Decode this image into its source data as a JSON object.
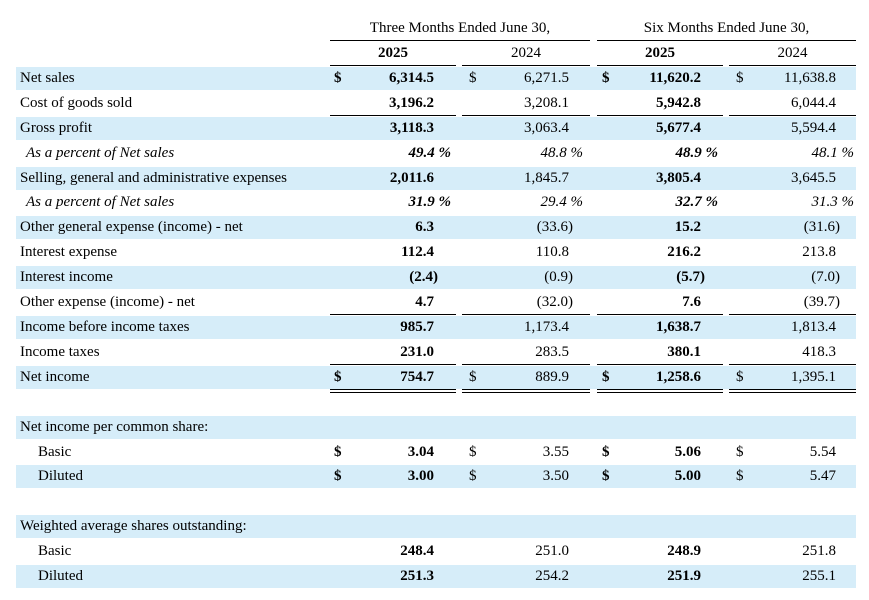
{
  "header": {
    "group1": "Three Months Ended June 30,",
    "group2": "Six Months Ended June 30,",
    "y2025_a": "2025",
    "y2024_a": "2024",
    "y2025_b": "2025",
    "y2024_b": "2024"
  },
  "currency": "$",
  "rows": {
    "net_sales": {
      "label": "Net sales",
      "v": [
        "6,314.5",
        "6,271.5",
        "11,620.2",
        "11,638.8"
      ]
    },
    "cogs": {
      "label": "Cost of goods sold",
      "v": [
        "3,196.2",
        "3,208.1",
        "5,942.8",
        "6,044.4"
      ]
    },
    "gross_profit": {
      "label": "Gross profit",
      "v": [
        "3,118.3",
        "3,063.4",
        "5,677.4",
        "5,594.4"
      ]
    },
    "gp_pct": {
      "label": "As a percent of Net sales",
      "v": [
        "49.4 %",
        "48.8 %",
        "48.9 %",
        "48.1 %"
      ]
    },
    "sga": {
      "label": "Selling, general and administrative expenses",
      "v": [
        "2,011.6",
        "1,845.7",
        "3,805.4",
        "3,645.5"
      ]
    },
    "sga_pct": {
      "label": "As a percent of Net sales",
      "v": [
        "31.9 %",
        "29.4 %",
        "32.7 %",
        "31.3 %"
      ]
    },
    "other_general": {
      "label": "Other general expense (income) - net",
      "v": [
        "6.3",
        "(33.6)",
        "15.2",
        "(31.6)"
      ]
    },
    "interest_expense": {
      "label": "Interest expense",
      "v": [
        "112.4",
        "110.8",
        "216.2",
        "213.8"
      ]
    },
    "interest_income": {
      "label": "Interest income",
      "v": [
        "(2.4)",
        "(0.9)",
        "(5.7)",
        "(7.0)"
      ]
    },
    "other_expense": {
      "label": "Other expense (income) - net",
      "v": [
        "4.7",
        "(32.0)",
        "7.6",
        "(39.7)"
      ]
    },
    "income_before_tax": {
      "label": "Income before income taxes",
      "v": [
        "985.7",
        "1,173.4",
        "1,638.7",
        "1,813.4"
      ]
    },
    "income_taxes": {
      "label": "Income taxes",
      "v": [
        "231.0",
        "283.5",
        "380.1",
        "418.3"
      ]
    },
    "net_income": {
      "label": "Net income",
      "v": [
        "754.7",
        "889.9",
        "1,258.6",
        "1,395.1"
      ]
    },
    "eps_header": {
      "label": "Net income per common share:"
    },
    "eps_basic": {
      "label": "Basic",
      "v": [
        "3.04",
        "3.55",
        "5.06",
        "5.54"
      ]
    },
    "eps_diluted": {
      "label": "Diluted",
      "v": [
        "3.00",
        "3.50",
        "5.00",
        "5.47"
      ]
    },
    "shares_header": {
      "label": "Weighted average shares outstanding:"
    },
    "shares_basic": {
      "label": "Basic",
      "v": [
        "248.4",
        "251.0",
        "248.9",
        "251.8"
      ]
    },
    "shares_diluted": {
      "label": "Diluted",
      "v": [
        "251.3",
        "254.2",
        "251.9",
        "255.1"
      ]
    }
  },
  "colors": {
    "shade": "#d6edf9"
  }
}
